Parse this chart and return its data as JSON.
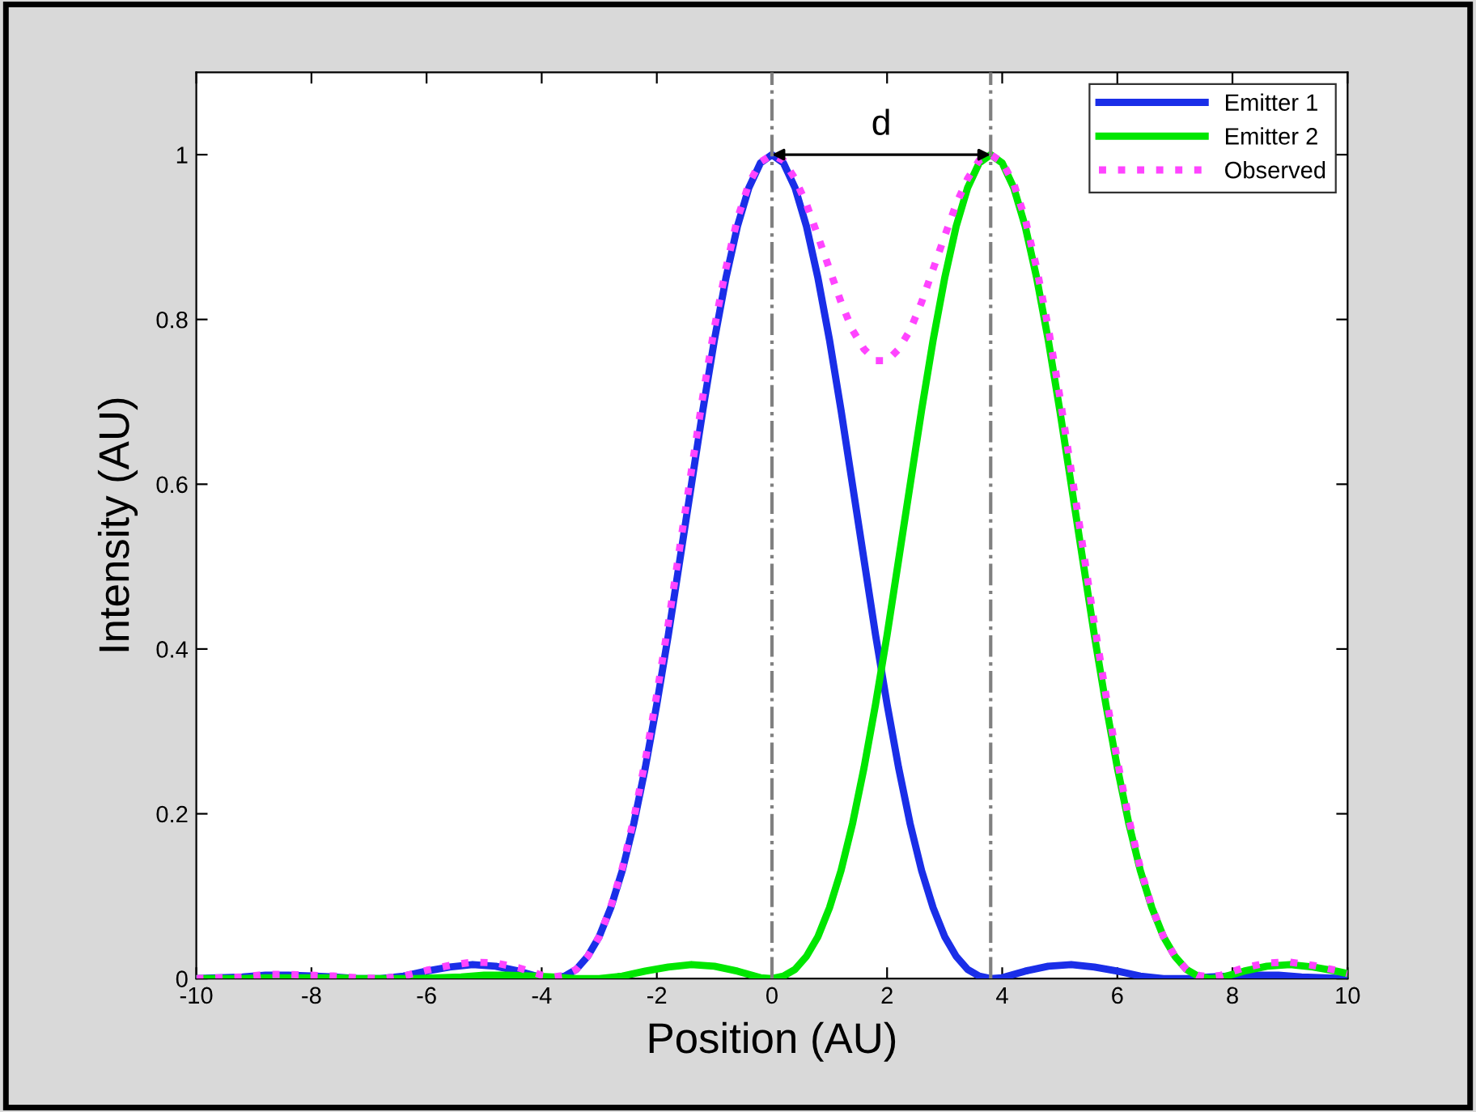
{
  "chart_data": {
    "type": "line",
    "xlabel": "Position (AU)",
    "ylabel": "Intensity (AU)",
    "xlim": [
      -10,
      10
    ],
    "xticks": [
      -10,
      -8,
      -6,
      -4,
      -2,
      0,
      2,
      4,
      6,
      8,
      10
    ],
    "ylim": [
      0,
      1.1
    ],
    "yticks": [
      0,
      0.2,
      0.4,
      0.6,
      0.8,
      1
    ],
    "grid": false,
    "legend": "top right",
    "marker": "none",
    "series": [
      {
        "name": "Emitter 1",
        "color": "#1a2ee8",
        "line_style": "solid",
        "x": [
          -10,
          -9.6,
          -9.2,
          -8.8,
          -8.4,
          -8.0,
          -7.6,
          -7.2,
          -6.8,
          -6.4,
          -6.0,
          -5.6,
          -5.2,
          -4.8,
          -4.4,
          -4.0,
          -3.8,
          -3.6,
          -3.4,
          -3.2,
          -3.0,
          -2.8,
          -2.6,
          -2.4,
          -2.2,
          -2.0,
          -1.8,
          -1.6,
          -1.4,
          -1.2,
          -1.0,
          -0.8,
          -0.6,
          -0.4,
          -0.2,
          0,
          0.2,
          0.4,
          0.6,
          0.8,
          1.0,
          1.2,
          1.4,
          1.6,
          1.8,
          2.0,
          2.2,
          2.4,
          2.6,
          2.8,
          3.0,
          3.2,
          3.4,
          3.6,
          3.8,
          4.0,
          4.4,
          4.8,
          5.2,
          5.6,
          6.0,
          6.4,
          6.8,
          7.2,
          7.6,
          8.0,
          8.4,
          8.8,
          9.2,
          9.6,
          10
        ],
        "values": [
          0.0,
          0.001,
          0.002,
          0.004,
          0.004,
          0.003,
          0.002,
          0.0,
          0.0,
          0.003,
          0.009,
          0.014,
          0.017,
          0.015,
          0.009,
          0.001,
          0.0,
          0.003,
          0.011,
          0.027,
          0.051,
          0.086,
          0.131,
          0.188,
          0.256,
          0.333,
          0.417,
          0.508,
          0.599,
          0.69,
          0.775,
          0.85,
          0.913,
          0.96,
          0.99,
          1.0,
          0.99,
          0.96,
          0.913,
          0.85,
          0.775,
          0.69,
          0.599,
          0.508,
          0.417,
          0.333,
          0.256,
          0.188,
          0.131,
          0.086,
          0.051,
          0.027,
          0.011,
          0.003,
          0.0,
          0.001,
          0.009,
          0.015,
          0.017,
          0.014,
          0.009,
          0.003,
          0.0,
          0.0,
          0.002,
          0.003,
          0.004,
          0.004,
          0.002,
          0.001,
          0.0
        ]
      },
      {
        "name": "Emitter 2",
        "color": "#00e600",
        "line_style": "solid",
        "x": [
          -10,
          -9.6,
          -9.2,
          -8.8,
          -8.4,
          -8.0,
          -7.6,
          -7.2,
          -6.8,
          -6.4,
          -6.2,
          -5.8,
          -5.4,
          -5.0,
          -4.6,
          -4.2,
          -3.8,
          -3.4,
          -3.0,
          -2.6,
          -2.2,
          -1.8,
          -1.4,
          -1.0,
          -0.6,
          -0.2,
          0,
          0.2,
          0.4,
          0.6,
          0.8,
          1.0,
          1.2,
          1.4,
          1.6,
          1.8,
          2.0,
          2.2,
          2.4,
          2.6,
          2.8,
          3.0,
          3.2,
          3.4,
          3.6,
          3.8,
          4.0,
          4.2,
          4.4,
          4.6,
          4.8,
          5.0,
          5.2,
          5.4,
          5.6,
          5.8,
          6.0,
          6.2,
          6.4,
          6.6,
          6.8,
          7.0,
          7.2,
          7.4,
          7.6,
          7.8,
          8.2,
          8.6,
          9.0,
          9.4,
          9.8,
          10
        ],
        "values": [
          0.0,
          0.0,
          0.0,
          0.001,
          0.001,
          0.001,
          0.001,
          0.0,
          0.0,
          0.0,
          0.0,
          0.001,
          0.002,
          0.004,
          0.004,
          0.003,
          0.002,
          0.0,
          0.0,
          0.003,
          0.009,
          0.014,
          0.017,
          0.015,
          0.009,
          0.001,
          0.0,
          0.003,
          0.011,
          0.027,
          0.051,
          0.086,
          0.131,
          0.188,
          0.256,
          0.333,
          0.417,
          0.508,
          0.599,
          0.69,
          0.775,
          0.85,
          0.913,
          0.96,
          0.99,
          1.0,
          0.99,
          0.96,
          0.913,
          0.85,
          0.775,
          0.69,
          0.599,
          0.508,
          0.417,
          0.333,
          0.256,
          0.188,
          0.131,
          0.086,
          0.051,
          0.027,
          0.011,
          0.003,
          0.0,
          0.001,
          0.009,
          0.015,
          0.017,
          0.014,
          0.009,
          0.006
        ]
      },
      {
        "name": "Observed",
        "color": "#ff44ff",
        "line_style": "dotted",
        "x": [
          -10,
          -9.6,
          -9.2,
          -8.8,
          -8.4,
          -8.0,
          -7.6,
          -7.2,
          -6.8,
          -6.4,
          -6.0,
          -5.6,
          -5.2,
          -4.8,
          -4.4,
          -4.0,
          -3.8,
          -3.6,
          -3.4,
          -3.2,
          -3.0,
          -2.8,
          -2.6,
          -2.4,
          -2.2,
          -2.0,
          -1.8,
          -1.6,
          -1.4,
          -1.2,
          -1.0,
          -0.8,
          -0.6,
          -0.4,
          -0.2,
          0,
          0.2,
          0.4,
          0.6,
          0.8,
          1.0,
          1.2,
          1.4,
          1.6,
          1.8,
          2.0,
          2.2,
          2.4,
          2.6,
          2.8,
          3.0,
          3.2,
          3.4,
          3.6,
          3.8,
          4.0,
          4.2,
          4.4,
          4.6,
          4.8,
          5.0,
          5.2,
          5.4,
          5.6,
          5.8,
          6.0,
          6.2,
          6.4,
          6.6,
          6.8,
          7.0,
          7.2,
          7.4,
          7.6,
          7.8,
          8.2,
          8.6,
          9.0,
          9.4,
          9.8,
          10
        ],
        "values": [
          0.0,
          0.001,
          0.002,
          0.005,
          0.005,
          0.004,
          0.003,
          0.001,
          0.0,
          0.003,
          0.01,
          0.016,
          0.02,
          0.019,
          0.013,
          0.004,
          0.002,
          0.004,
          0.011,
          0.027,
          0.051,
          0.087,
          0.134,
          0.194,
          0.265,
          0.345,
          0.431,
          0.524,
          0.616,
          0.707,
          0.79,
          0.862,
          0.922,
          0.965,
          0.991,
          1.0,
          0.993,
          0.971,
          0.94,
          0.901,
          0.861,
          0.821,
          0.787,
          0.764,
          0.75,
          0.75,
          0.764,
          0.787,
          0.821,
          0.861,
          0.901,
          0.94,
          0.971,
          0.993,
          1.0,
          0.991,
          0.965,
          0.922,
          0.862,
          0.79,
          0.707,
          0.616,
          0.524,
          0.431,
          0.345,
          0.265,
          0.194,
          0.134,
          0.087,
          0.051,
          0.027,
          0.011,
          0.004,
          0.002,
          0.004,
          0.013,
          0.019,
          0.02,
          0.016,
          0.01,
          0.006
        ]
      }
    ],
    "ref_lines": [
      {
        "axis": "x",
        "value": 0,
        "color": "#808080",
        "line_style": "dashdot"
      },
      {
        "axis": "x",
        "value": 3.8,
        "color": "#808080",
        "line_style": "dashdot"
      }
    ],
    "annotations": [
      "d"
    ]
  }
}
